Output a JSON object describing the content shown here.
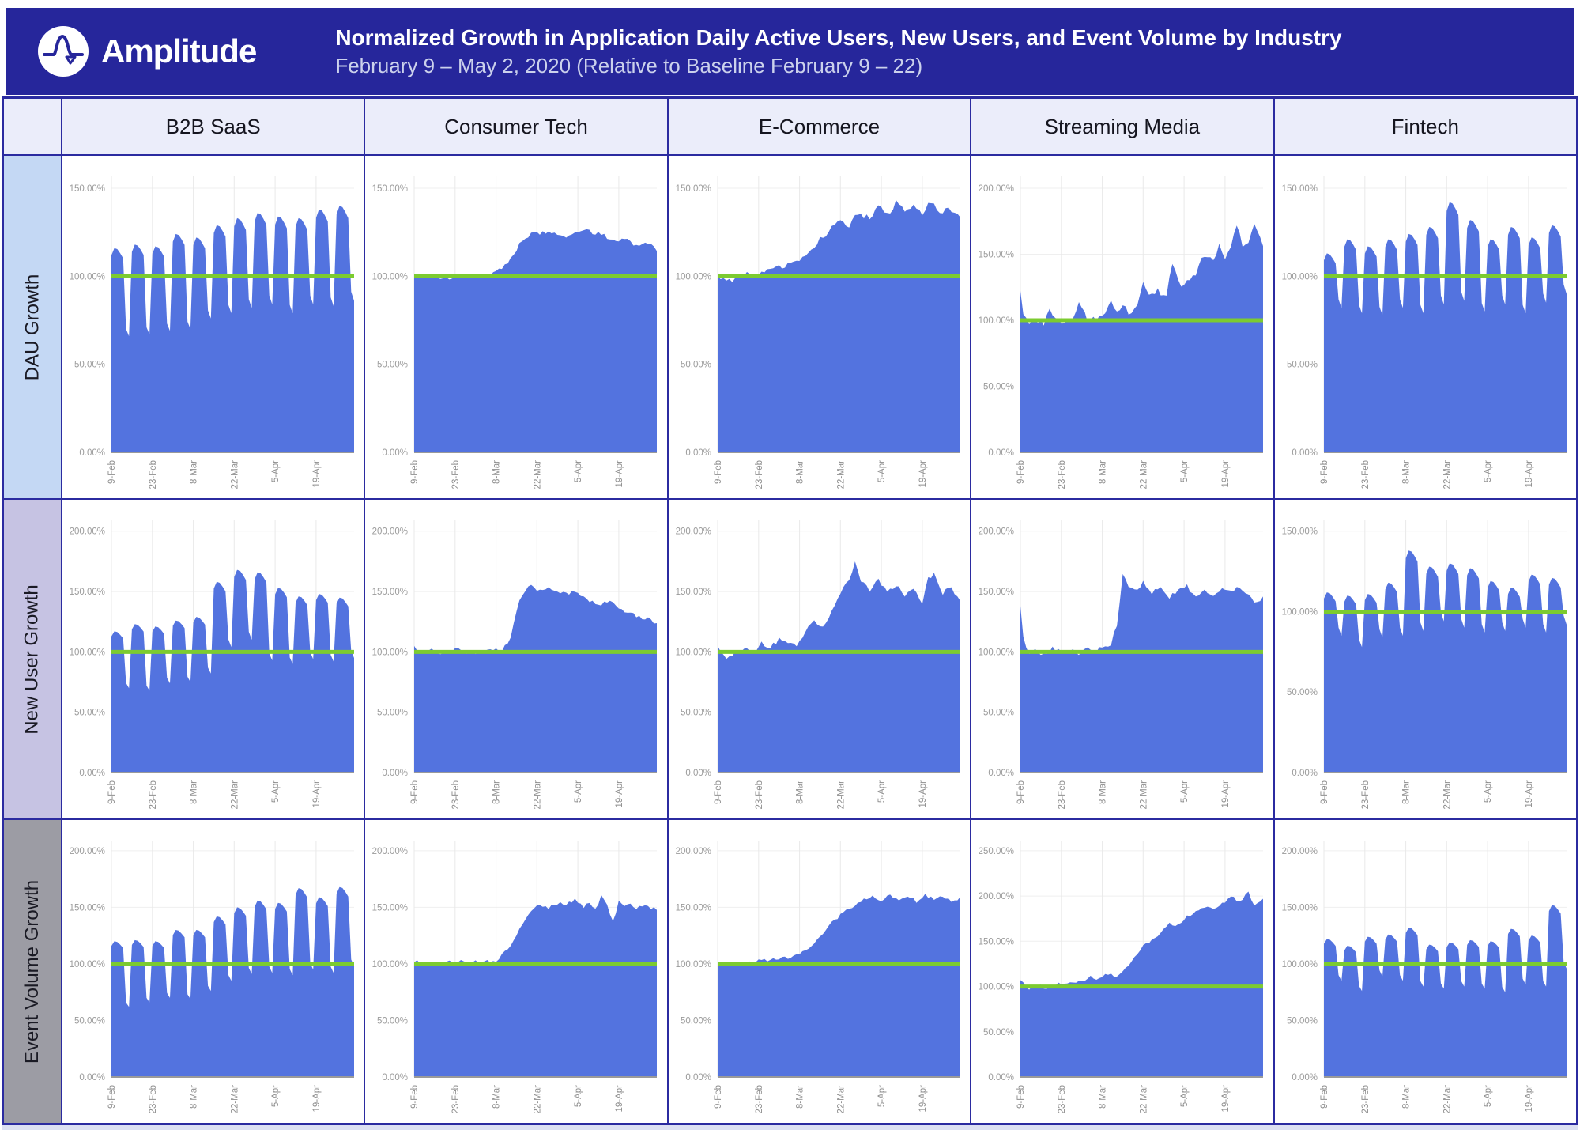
{
  "header": {
    "brand": "Amplitude",
    "title": "Normalized Growth in Application Daily Active Users, New Users, and Event Volume by Industry",
    "subtitle": "February 9 – May 2, 2020 (Relative to Baseline February 9 – 22)"
  },
  "table": {
    "columns": [
      "B2B SaaS",
      "Consumer Tech",
      "E-Commerce",
      "Streaming Media",
      "Fintech"
    ],
    "rows": [
      "DAU Growth",
      "New User Growth",
      "Event Volume Growth"
    ]
  },
  "colors": {
    "header_bg": "#26269B",
    "border_navy": "#2B2BA0",
    "area_fill": "#5373DF",
    "baseline_green": "#7CCB30",
    "col_header_bg": "#EBEDFA",
    "row_label_bgs": [
      "#C4D8F4",
      "#C6C3E3",
      "#9C9CA4"
    ]
  },
  "x_tick_labels": [
    "9-Feb",
    "23-Feb",
    "8-Mar",
    "22-Mar",
    "5-Apr",
    "19-Apr"
  ],
  "x_tick_days": [
    0,
    14,
    28,
    42,
    56,
    70
  ],
  "chart_data": [
    {
      "type": "area",
      "industry": "B2B SaaS",
      "metric": "DAU Growth",
      "baseline_pct": 100,
      "ylim": [
        0,
        150
      ],
      "y_ticks": [
        0,
        50,
        100,
        150
      ],
      "y_tick_labels": [
        "0.00%",
        "50.00%",
        "100.00%",
        "150.00%"
      ],
      "series": {
        "kind": "weekly",
        "weekly_peaks": [
          116,
          118,
          117,
          124,
          122,
          129,
          133,
          136,
          134,
          133,
          138,
          140
        ],
        "weekly_troughs": [
          66,
          67,
          69,
          70,
          76,
          79,
          82,
          84,
          79,
          84,
          83,
          86
        ]
      }
    },
    {
      "type": "area",
      "industry": "Consumer Tech",
      "metric": "DAU Growth",
      "baseline_pct": 100,
      "ylim": [
        0,
        150
      ],
      "y_ticks": [
        0,
        50,
        100,
        150
      ],
      "y_tick_labels": [
        "0.00%",
        "50.00%",
        "100.00%",
        "150.00%"
      ],
      "series": {
        "kind": "smooth",
        "noise": 1.2,
        "x": [
          0,
          6,
          12,
          18,
          24,
          28,
          32,
          36,
          40,
          46,
          52,
          58,
          64,
          68,
          72,
          76,
          80,
          83
        ],
        "y": [
          101,
          100,
          99,
          101,
          100,
          102,
          108,
          118,
          124,
          125,
          123,
          126,
          124,
          120,
          122,
          117,
          119,
          115
        ]
      }
    },
    {
      "type": "area",
      "industry": "E-Commerce",
      "metric": "DAU Growth",
      "baseline_pct": 100,
      "ylim": [
        0,
        150
      ],
      "y_ticks": [
        0,
        50,
        100,
        150
      ],
      "y_tick_labels": [
        "0.00%",
        "50.00%",
        "100.00%",
        "150.00%"
      ],
      "series": {
        "kind": "smooth",
        "noise": 1.8,
        "x": [
          0,
          4,
          7,
          10,
          14,
          18,
          22,
          26,
          30,
          34,
          38,
          42,
          45,
          48,
          52,
          55,
          58,
          61,
          64,
          67,
          70,
          73,
          76,
          79,
          83
        ],
        "y": [
          100,
          97,
          100,
          102,
          100,
          104,
          106,
          108,
          112,
          119,
          126,
          132,
          128,
          136,
          133,
          140,
          135,
          142,
          137,
          141,
          136,
          142,
          135,
          139,
          133
        ]
      }
    },
    {
      "type": "area",
      "industry": "Streaming Media",
      "metric": "DAU Growth",
      "baseline_pct": 100,
      "ylim": [
        0,
        200
      ],
      "y_ticks": [
        0,
        50,
        100,
        150,
        200
      ],
      "y_tick_labels": [
        "0.00%",
        "50.00%",
        "100.00%",
        "150.00%",
        "200.00%"
      ],
      "series": {
        "kind": "smooth",
        "noise": 2.5,
        "x": [
          0,
          1,
          3,
          5,
          8,
          10,
          12,
          15,
          18,
          20,
          23,
          26,
          29,
          31,
          33,
          35,
          38,
          40,
          42,
          44,
          47,
          50,
          52,
          55,
          57,
          60,
          62,
          64,
          66,
          68,
          70,
          72,
          74,
          76,
          78,
          80,
          83
        ],
        "y": [
          120,
          104,
          99,
          101,
          97,
          111,
          100,
          97,
          101,
          112,
          100,
          102,
          105,
          117,
          106,
          111,
          104,
          109,
          129,
          117,
          122,
          117,
          144,
          127,
          131,
          136,
          147,
          150,
          144,
          159,
          148,
          154,
          174,
          158,
          161,
          172,
          157
        ]
      }
    },
    {
      "type": "area",
      "industry": "Fintech",
      "metric": "DAU Growth",
      "baseline_pct": 100,
      "ylim": [
        0,
        150
      ],
      "y_ticks": [
        0,
        50,
        100,
        150
      ],
      "y_tick_labels": [
        "0.00%",
        "50.00%",
        "100.00%",
        "150.00%"
      ],
      "series": {
        "kind": "weekly",
        "weekly_peaks": [
          113,
          121,
          117,
          121,
          124,
          128,
          142,
          132,
          121,
          128,
          122,
          129
        ],
        "weekly_troughs": [
          82,
          79,
          78,
          82,
          79,
          84,
          86,
          80,
          84,
          79,
          85,
          90
        ]
      }
    },
    {
      "type": "area",
      "industry": "B2B SaaS",
      "metric": "New User Growth",
      "baseline_pct": 100,
      "ylim": [
        0,
        200
      ],
      "y_ticks": [
        0,
        50,
        100,
        150,
        200
      ],
      "y_tick_labels": [
        "0.00%",
        "50.00%",
        "100.00%",
        "150.00%",
        "200.00%"
      ],
      "series": {
        "kind": "weekly",
        "weekly_peaks": [
          117,
          123,
          121,
          126,
          129,
          158,
          168,
          166,
          153,
          146,
          148,
          145
        ],
        "weekly_troughs": [
          70,
          68,
          74,
          75,
          82,
          104,
          110,
          93,
          90,
          94,
          92,
          95
        ]
      }
    },
    {
      "type": "area",
      "industry": "Consumer Tech",
      "metric": "New User Growth",
      "baseline_pct": 100,
      "ylim": [
        0,
        200
      ],
      "y_ticks": [
        0,
        50,
        100,
        150,
        200
      ],
      "y_tick_labels": [
        "0.00%",
        "50.00%",
        "100.00%",
        "150.00%",
        "200.00%"
      ],
      "series": {
        "kind": "smooth",
        "noise": 1.8,
        "x": [
          0,
          3,
          6,
          10,
          14,
          18,
          22,
          26,
          30,
          33,
          36,
          39,
          43,
          47,
          51,
          55,
          59,
          63,
          67,
          71,
          75,
          79,
          83
        ],
        "y": [
          104,
          99,
          101,
          98,
          103,
          100,
          99,
          101,
          102,
          112,
          142,
          156,
          151,
          153,
          148,
          150,
          144,
          139,
          143,
          134,
          131,
          128,
          124
        ]
      }
    },
    {
      "type": "area",
      "industry": "E-Commerce",
      "metric": "New User Growth",
      "baseline_pct": 100,
      "ylim": [
        0,
        200
      ],
      "y_ticks": [
        0,
        50,
        100,
        150,
        200
      ],
      "y_tick_labels": [
        "0.00%",
        "50.00%",
        "100.00%",
        "150.00%",
        "200.00%"
      ],
      "series": {
        "kind": "smooth",
        "noise": 2,
        "x": [
          0,
          3,
          6,
          9,
          12,
          15,
          18,
          21,
          24,
          27,
          30,
          33,
          36,
          39,
          42,
          45,
          47,
          49,
          52,
          55,
          58,
          61,
          64,
          67,
          70,
          72,
          74,
          77,
          80,
          83
        ],
        "y": [
          105,
          96,
          99,
          102,
          99,
          107,
          103,
          111,
          107,
          104,
          117,
          126,
          121,
          134,
          149,
          160,
          174,
          158,
          151,
          159,
          149,
          155,
          147,
          152,
          140,
          161,
          164,
          149,
          154,
          141
        ]
      }
    },
    {
      "type": "area",
      "industry": "Streaming Media",
      "metric": "New User Growth",
      "baseline_pct": 100,
      "ylim": [
        0,
        200
      ],
      "y_ticks": [
        0,
        50,
        100,
        150,
        200
      ],
      "y_tick_labels": [
        "0.00%",
        "50.00%",
        "100.00%",
        "150.00%",
        "200.00%"
      ],
      "series": {
        "kind": "smooth",
        "noise": 2,
        "x": [
          0,
          1,
          3,
          5,
          8,
          11,
          14,
          17,
          20,
          23,
          26,
          29,
          31,
          33,
          35,
          37,
          39,
          42,
          45,
          48,
          51,
          54,
          57,
          60,
          63,
          66,
          69,
          72,
          75,
          78,
          81,
          83
        ],
        "y": [
          140,
          112,
          99,
          103,
          97,
          104,
          100,
          102,
          99,
          103,
          101,
          104,
          107,
          122,
          163,
          154,
          150,
          157,
          148,
          154,
          145,
          151,
          154,
          147,
          150,
          145,
          152,
          149,
          154,
          146,
          141,
          144
        ]
      }
    },
    {
      "type": "area",
      "industry": "Fintech",
      "metric": "New User Growth",
      "baseline_pct": 100,
      "ylim": [
        0,
        150
      ],
      "y_ticks": [
        0,
        50,
        100,
        150
      ],
      "y_tick_labels": [
        "0.00%",
        "50.00%",
        "100.00%",
        "150.00%"
      ],
      "series": {
        "kind": "weekly",
        "weekly_peaks": [
          112,
          110,
          111,
          118,
          138,
          128,
          130,
          127,
          119,
          115,
          123,
          121
        ],
        "weekly_troughs": [
          85,
          78,
          84,
          85,
          88,
          94,
          90,
          87,
          88,
          90,
          87,
          92
        ]
      }
    },
    {
      "type": "area",
      "industry": "B2B SaaS",
      "metric": "Event Volume Growth",
      "baseline_pct": 100,
      "ylim": [
        0,
        200
      ],
      "y_ticks": [
        0,
        50,
        100,
        150,
        200
      ],
      "y_tick_labels": [
        "0.00%",
        "50.00%",
        "100.00%",
        "150.00%",
        "200.00%"
      ],
      "series": {
        "kind": "weekly",
        "weekly_peaks": [
          120,
          121,
          120,
          130,
          130,
          142,
          150,
          156,
          154,
          167,
          159,
          168
        ],
        "weekly_troughs": [
          62,
          66,
          70,
          69,
          76,
          85,
          91,
          92,
          90,
          95,
          92,
          98
        ]
      }
    },
    {
      "type": "area",
      "industry": "Consumer Tech",
      "metric": "Event Volume Growth",
      "baseline_pct": 100,
      "ylim": [
        0,
        200
      ],
      "y_ticks": [
        0,
        50,
        100,
        150,
        200
      ],
      "y_tick_labels": [
        "0.00%",
        "50.00%",
        "100.00%",
        "150.00%",
        "200.00%"
      ],
      "series": {
        "kind": "smooth",
        "noise": 1.6,
        "x": [
          0,
          5,
          10,
          15,
          20,
          25,
          28,
          31,
          34,
          37,
          40,
          43,
          46,
          49,
          52,
          55,
          58,
          60,
          62,
          64,
          66,
          68,
          70,
          72,
          74,
          76,
          78,
          80,
          83
        ],
        "y": [
          103,
          100,
          101,
          103,
          102,
          102,
          103,
          110,
          121,
          135,
          147,
          152,
          150,
          154,
          152,
          157,
          150,
          155,
          148,
          160,
          152,
          137,
          155,
          150,
          154,
          148,
          152,
          150,
          149
        ]
      }
    },
    {
      "type": "area",
      "industry": "E-Commerce",
      "metric": "Event Volume Growth",
      "baseline_pct": 100,
      "ylim": [
        0,
        200
      ],
      "y_ticks": [
        0,
        50,
        100,
        150,
        200
      ],
      "y_tick_labels": [
        "0.00%",
        "50.00%",
        "100.00%",
        "150.00%",
        "200.00%"
      ],
      "series": {
        "kind": "smooth",
        "noise": 1.4,
        "x": [
          0,
          5,
          10,
          15,
          20,
          25,
          30,
          35,
          40,
          45,
          50,
          53,
          56,
          59,
          62,
          65,
          68,
          71,
          74,
          77,
          80,
          83
        ],
        "y": [
          100,
          99,
          101,
          103,
          104,
          106,
          112,
          124,
          139,
          149,
          157,
          160,
          155,
          161,
          157,
          160,
          155,
          161,
          157,
          160,
          156,
          158
        ]
      }
    },
    {
      "type": "area",
      "industry": "Streaming Media",
      "metric": "Event Volume Growth",
      "baseline_pct": 100,
      "ylim": [
        0,
        250
      ],
      "y_ticks": [
        0,
        50,
        100,
        150,
        200,
        250
      ],
      "y_tick_labels": [
        "0.00%",
        "50.00%",
        "100.00%",
        "150.00%",
        "200.00%",
        "250.00%"
      ],
      "series": {
        "kind": "smooth",
        "noise": 2,
        "x": [
          0,
          3,
          6,
          9,
          12,
          15,
          18,
          21,
          24,
          27,
          30,
          33,
          36,
          39,
          42,
          45,
          48,
          51,
          54,
          57,
          60,
          63,
          66,
          69,
          72,
          75,
          78,
          80,
          83
        ],
        "y": [
          106,
          98,
          102,
          97,
          103,
          105,
          103,
          107,
          110,
          108,
          114,
          112,
          120,
          134,
          145,
          152,
          160,
          170,
          167,
          177,
          182,
          188,
          184,
          192,
          199,
          194,
          203,
          191,
          198
        ]
      }
    },
    {
      "type": "area",
      "industry": "Fintech",
      "metric": "Event Volume Growth",
      "baseline_pct": 100,
      "ylim": [
        0,
        200
      ],
      "y_ticks": [
        0,
        50,
        100,
        150,
        200
      ],
      "y_tick_labels": [
        "0.00%",
        "50.00%",
        "100.00%",
        "150.00%",
        "200.00%"
      ],
      "series": {
        "kind": "weekly",
        "weekly_peaks": [
          122,
          116,
          124,
          126,
          132,
          117,
          119,
          121,
          120,
          131,
          125,
          152
        ],
        "weekly_troughs": [
          85,
          76,
          89,
          85,
          80,
          78,
          80,
          78,
          75,
          82,
          80,
          96
        ]
      }
    }
  ]
}
